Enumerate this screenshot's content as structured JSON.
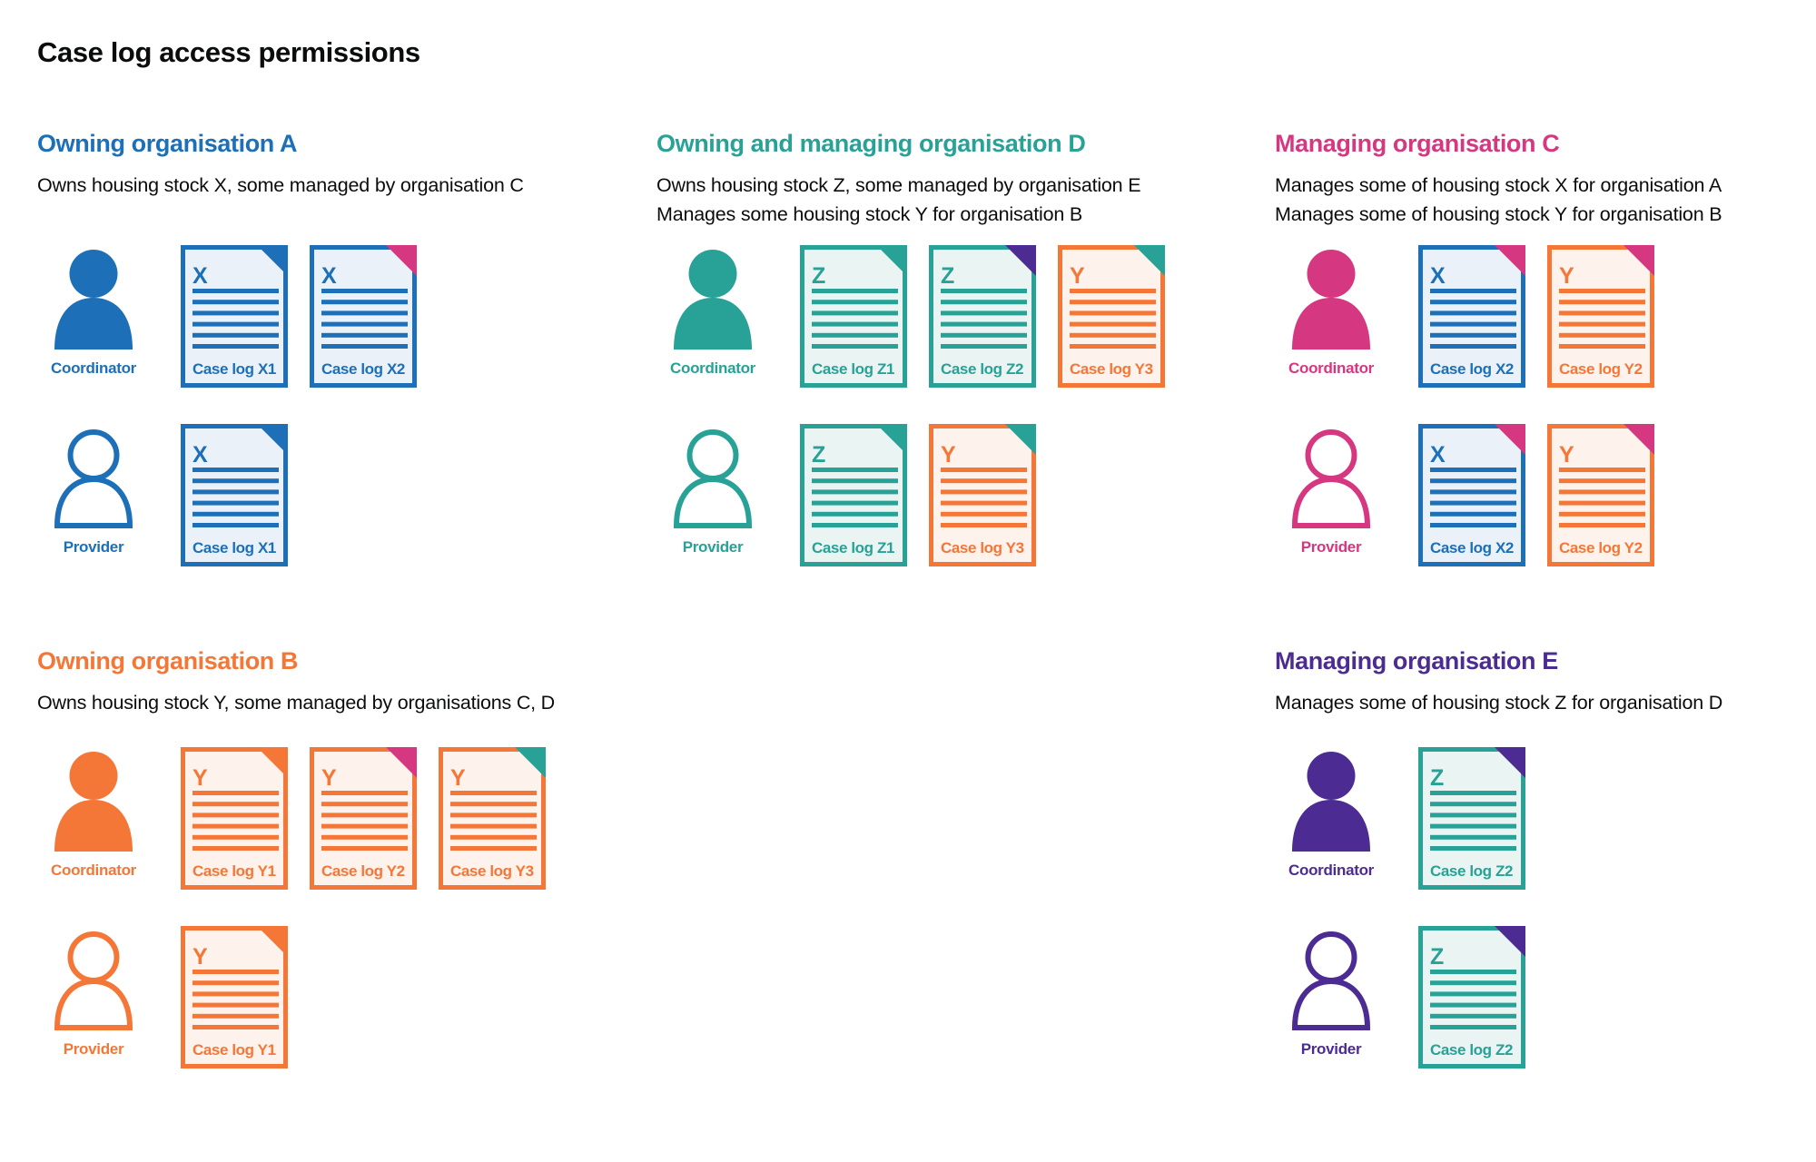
{
  "title": "Case log access permissions",
  "colors": {
    "blue": "#1d70b8",
    "teal": "#28a197",
    "pink": "#d53880",
    "orange": "#f47738",
    "purple": "#4c2c92",
    "blue_fill": "#eaf1f9",
    "teal_fill": "#eaf5f3",
    "orange_fill": "#fdf3ec",
    "text": "#0b0c0c",
    "background": "#ffffff"
  },
  "sections": [
    {
      "id": "org-a",
      "heading": "Owning organisation A",
      "scheme": "blue",
      "description": "Owns housing stock X, some managed by organisation C",
      "rows": [
        {
          "role": "Coordinator",
          "person": "filled",
          "scheme": "blue",
          "docs": [
            {
              "letter": "X",
              "label": "Case log X1",
              "scheme": "blue",
              "fold": "blue"
            },
            {
              "letter": "X",
              "label": "Case log X2",
              "scheme": "blue",
              "fold": "pink"
            }
          ]
        },
        {
          "role": "Provider",
          "person": "outline",
          "scheme": "blue",
          "docs": [
            {
              "letter": "X",
              "label": "Case log X1",
              "scheme": "blue",
              "fold": "blue"
            }
          ]
        }
      ]
    },
    {
      "id": "org-d",
      "heading": "Owning and managing organisation D",
      "scheme": "teal",
      "description": "Owns housing stock Z, some managed by organisation E\nManages some housing stock Y for organisation B",
      "rows": [
        {
          "role": "Coordinator",
          "person": "filled",
          "scheme": "teal",
          "docs": [
            {
              "letter": "Z",
              "label": "Case log Z1",
              "scheme": "teal",
              "fold": "teal"
            },
            {
              "letter": "Z",
              "label": "Case log Z2",
              "scheme": "teal",
              "fold": "purple"
            },
            {
              "letter": "Y",
              "label": "Case log Y3",
              "scheme": "orange",
              "fold": "teal"
            }
          ]
        },
        {
          "role": "Provider",
          "person": "outline",
          "scheme": "teal",
          "docs": [
            {
              "letter": "Z",
              "label": "Case log Z1",
              "scheme": "teal",
              "fold": "teal"
            },
            {
              "letter": "Y",
              "label": "Case log Y3",
              "scheme": "orange",
              "fold": "teal"
            }
          ]
        }
      ]
    },
    {
      "id": "org-c",
      "heading": "Managing organisation C",
      "scheme": "pink",
      "description": "Manages some of housing stock X for organisation A\nManages some of housing stock Y for organisation B",
      "rows": [
        {
          "role": "Coordinator",
          "person": "filled",
          "scheme": "pink",
          "docs": [
            {
              "letter": "X",
              "label": "Case log X2",
              "scheme": "blue",
              "fold": "pink"
            },
            {
              "letter": "Y",
              "label": "Case log Y2",
              "scheme": "orange",
              "fold": "pink"
            }
          ]
        },
        {
          "role": "Provider",
          "person": "outline",
          "scheme": "pink",
          "docs": [
            {
              "letter": "X",
              "label": "Case log X2",
              "scheme": "blue",
              "fold": "pink"
            },
            {
              "letter": "Y",
              "label": "Case log Y2",
              "scheme": "orange",
              "fold": "pink"
            }
          ]
        }
      ]
    },
    {
      "id": "org-b",
      "heading": "Owning organisation B",
      "scheme": "orange",
      "description": "Owns housing stock Y, some managed by organisations C, D",
      "rows": [
        {
          "role": "Coordinator",
          "person": "filled",
          "scheme": "orange",
          "docs": [
            {
              "letter": "Y",
              "label": "Case log Y1",
              "scheme": "orange",
              "fold": "orange"
            },
            {
              "letter": "Y",
              "label": "Case log Y2",
              "scheme": "orange",
              "fold": "pink"
            },
            {
              "letter": "Y",
              "label": "Case log Y3",
              "scheme": "orange",
              "fold": "teal"
            }
          ]
        },
        {
          "role": "Provider",
          "person": "outline",
          "scheme": "orange",
          "docs": [
            {
              "letter": "Y",
              "label": "Case log Y1",
              "scheme": "orange",
              "fold": "orange"
            }
          ]
        }
      ]
    },
    {
      "id": "org-e",
      "heading": "Managing organisation E",
      "scheme": "purple",
      "description": "Manages some of housing stock Z for organisation D",
      "rows": [
        {
          "role": "Coordinator",
          "person": "filled",
          "scheme": "purple",
          "docs": [
            {
              "letter": "Z",
              "label": "Case log Z2",
              "scheme": "teal",
              "fold": "purple"
            }
          ]
        },
        {
          "role": "Provider",
          "person": "outline",
          "scheme": "purple",
          "docs": [
            {
              "letter": "Z",
              "label": "Case log Z2",
              "scheme": "teal",
              "fold": "purple"
            }
          ]
        }
      ]
    }
  ]
}
